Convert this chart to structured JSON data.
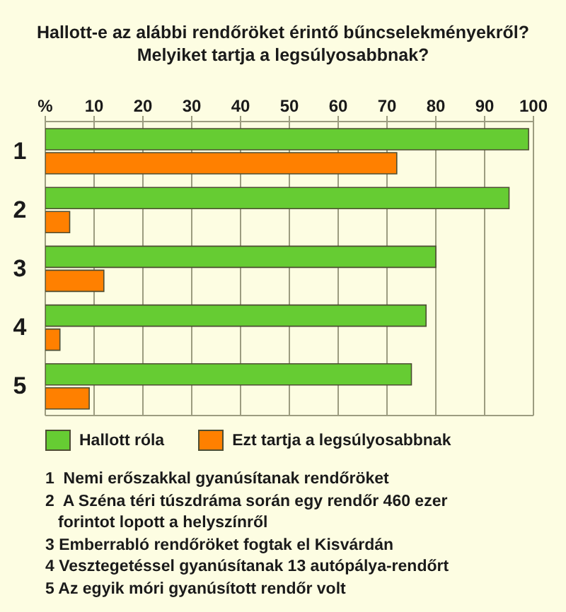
{
  "chart_data": {
    "type": "bar",
    "orientation": "horizontal",
    "title": "Hallott-e az alábbi rendőröket érintő bűncselekményekről? Melyiket tartja a legsúlyosabbnak?",
    "categories": [
      "1",
      "2",
      "3",
      "4",
      "5"
    ],
    "series": [
      {
        "name": "Hallott róla",
        "color": "#66cc33",
        "values": [
          99,
          95,
          80,
          78,
          75
        ]
      },
      {
        "name": "Ezt tartja a legsúlyosabbnak",
        "color": "#ff8000",
        "values": [
          72,
          5,
          12,
          3,
          9
        ]
      }
    ],
    "xlim": [
      0,
      100
    ],
    "xticks": [
      {
        "value": 0,
        "label": "%"
      },
      10,
      20,
      30,
      40,
      50,
      60,
      70,
      80,
      90,
      100
    ],
    "grid": "x",
    "legend": "bottom",
    "annotations": [
      "1  Nemi erőszakkal gyanúsítanak rendőröket",
      "2  A Széna téri túszdráma során egy rendőr 460 ezer forintot lopott a helyszínről",
      "3 Emberrabló rendőröket fogtak el Kisvárdán",
      "4 Vesztegetéssel gyanúsítanak 13 autópálya-rendőrt",
      "5 Az egyik móri gyanúsított rendőr volt"
    ]
  }
}
